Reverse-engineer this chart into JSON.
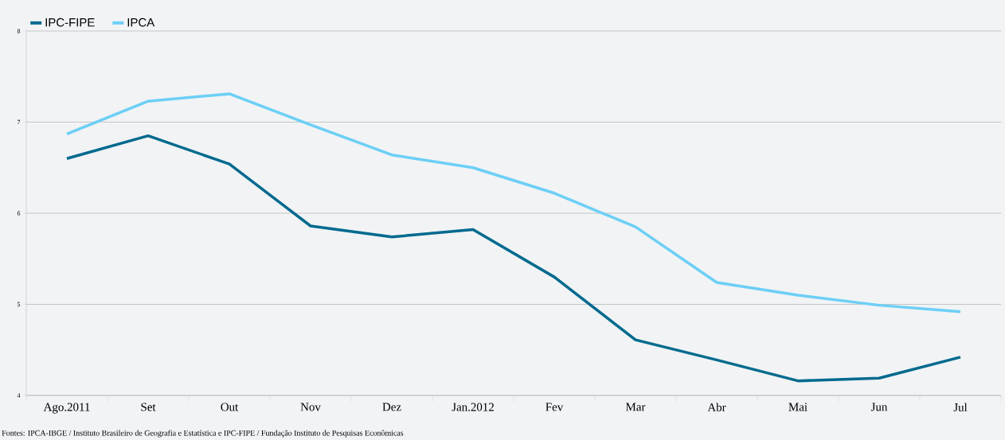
{
  "chart_data": {
    "type": "line",
    "categories": [
      "Ago.2011",
      "Set",
      "Out",
      "Nov",
      "Dez",
      "Jan.2012",
      "Fev",
      "Mar",
      "Abr",
      "Mai",
      "Jun",
      "Jul"
    ],
    "series": [
      {
        "name": "IPC-FIPE",
        "color": "#006a8e",
        "values": [
          6.6,
          6.85,
          6.54,
          5.86,
          5.74,
          5.82,
          5.3,
          4.61,
          4.39,
          4.16,
          4.19,
          4.42
        ]
      },
      {
        "name": "IPCA",
        "color": "#6ccff6",
        "values": [
          6.87,
          7.23,
          7.31,
          6.97,
          6.64,
          6.5,
          6.22,
          5.85,
          5.24,
          5.1,
          4.99,
          4.92
        ]
      }
    ],
    "ylim": [
      4,
      8
    ],
    "yticks": [
      4,
      5,
      6,
      7,
      8
    ],
    "grid": "y",
    "legend": "top left",
    "marker": "none",
    "line_style": "solid",
    "annotations": [
      "Fontes: IPCA-IBGE / Instituto Brasileiro de Geografia e Estatística e IPC-FIPE / Fundação Instituto de Pesquisas Econômicas"
    ]
  }
}
